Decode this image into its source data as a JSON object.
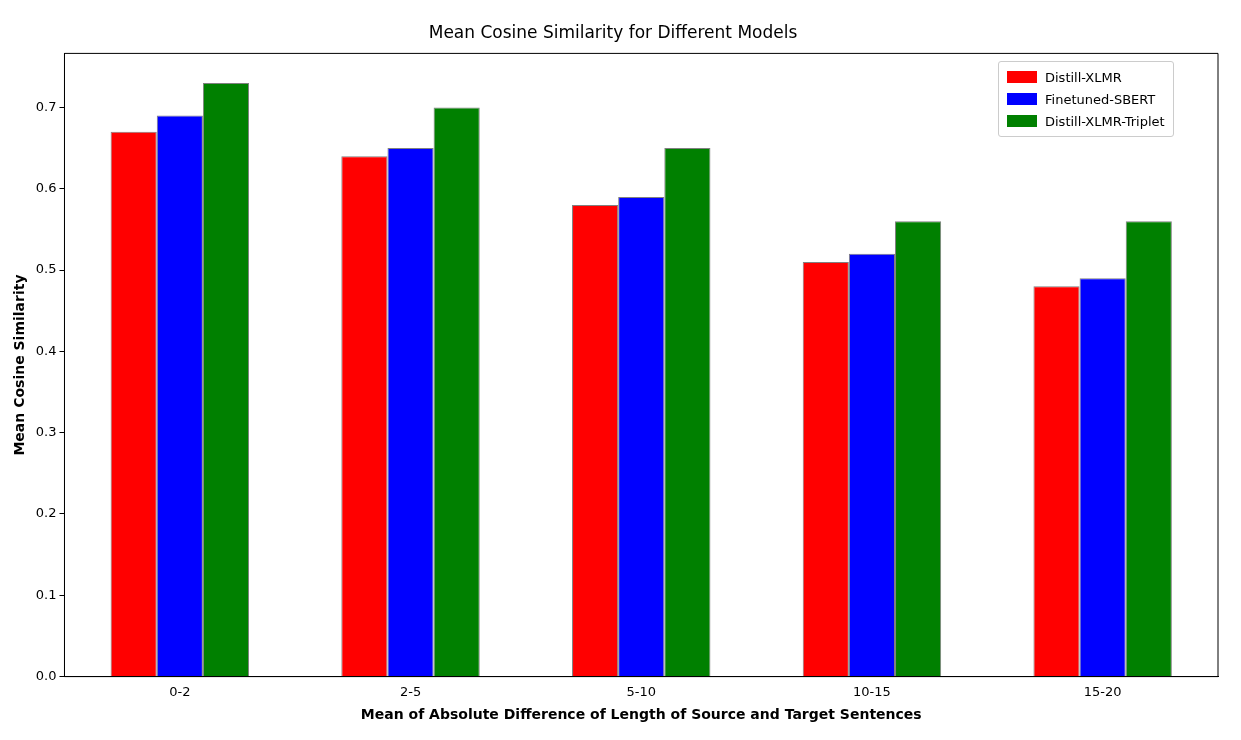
{
  "chart_data": {
    "type": "bar",
    "title": "Mean Cosine Similarity for Different Models",
    "xlabel": "Mean of Absolute Difference of Length of Source and Target Sentences",
    "ylabel": "Mean Cosine Similarity",
    "categories": [
      "0-2",
      "2-5",
      "5-10",
      "10-15",
      "15-20"
    ],
    "series": [
      {
        "name": "Distill-XLMR",
        "color": "#ff0000",
        "values": [
          0.67,
          0.64,
          0.58,
          0.51,
          0.48
        ]
      },
      {
        "name": "Finetuned-SBERT",
        "color": "#0000ff",
        "values": [
          0.69,
          0.65,
          0.59,
          0.52,
          0.49
        ]
      },
      {
        "name": "Distill-XLMR-Triplet",
        "color": "#008000",
        "values": [
          0.73,
          0.7,
          0.65,
          0.56,
          0.56
        ]
      }
    ],
    "ylim": [
      0,
      0.7665
    ],
    "yticks": [
      {
        "value": 0,
        "label": "0.0"
      },
      0.1,
      0.2,
      0.3,
      0.4,
      0.5,
      0.6,
      0.7
    ],
    "grid": false,
    "legend": "top right"
  }
}
